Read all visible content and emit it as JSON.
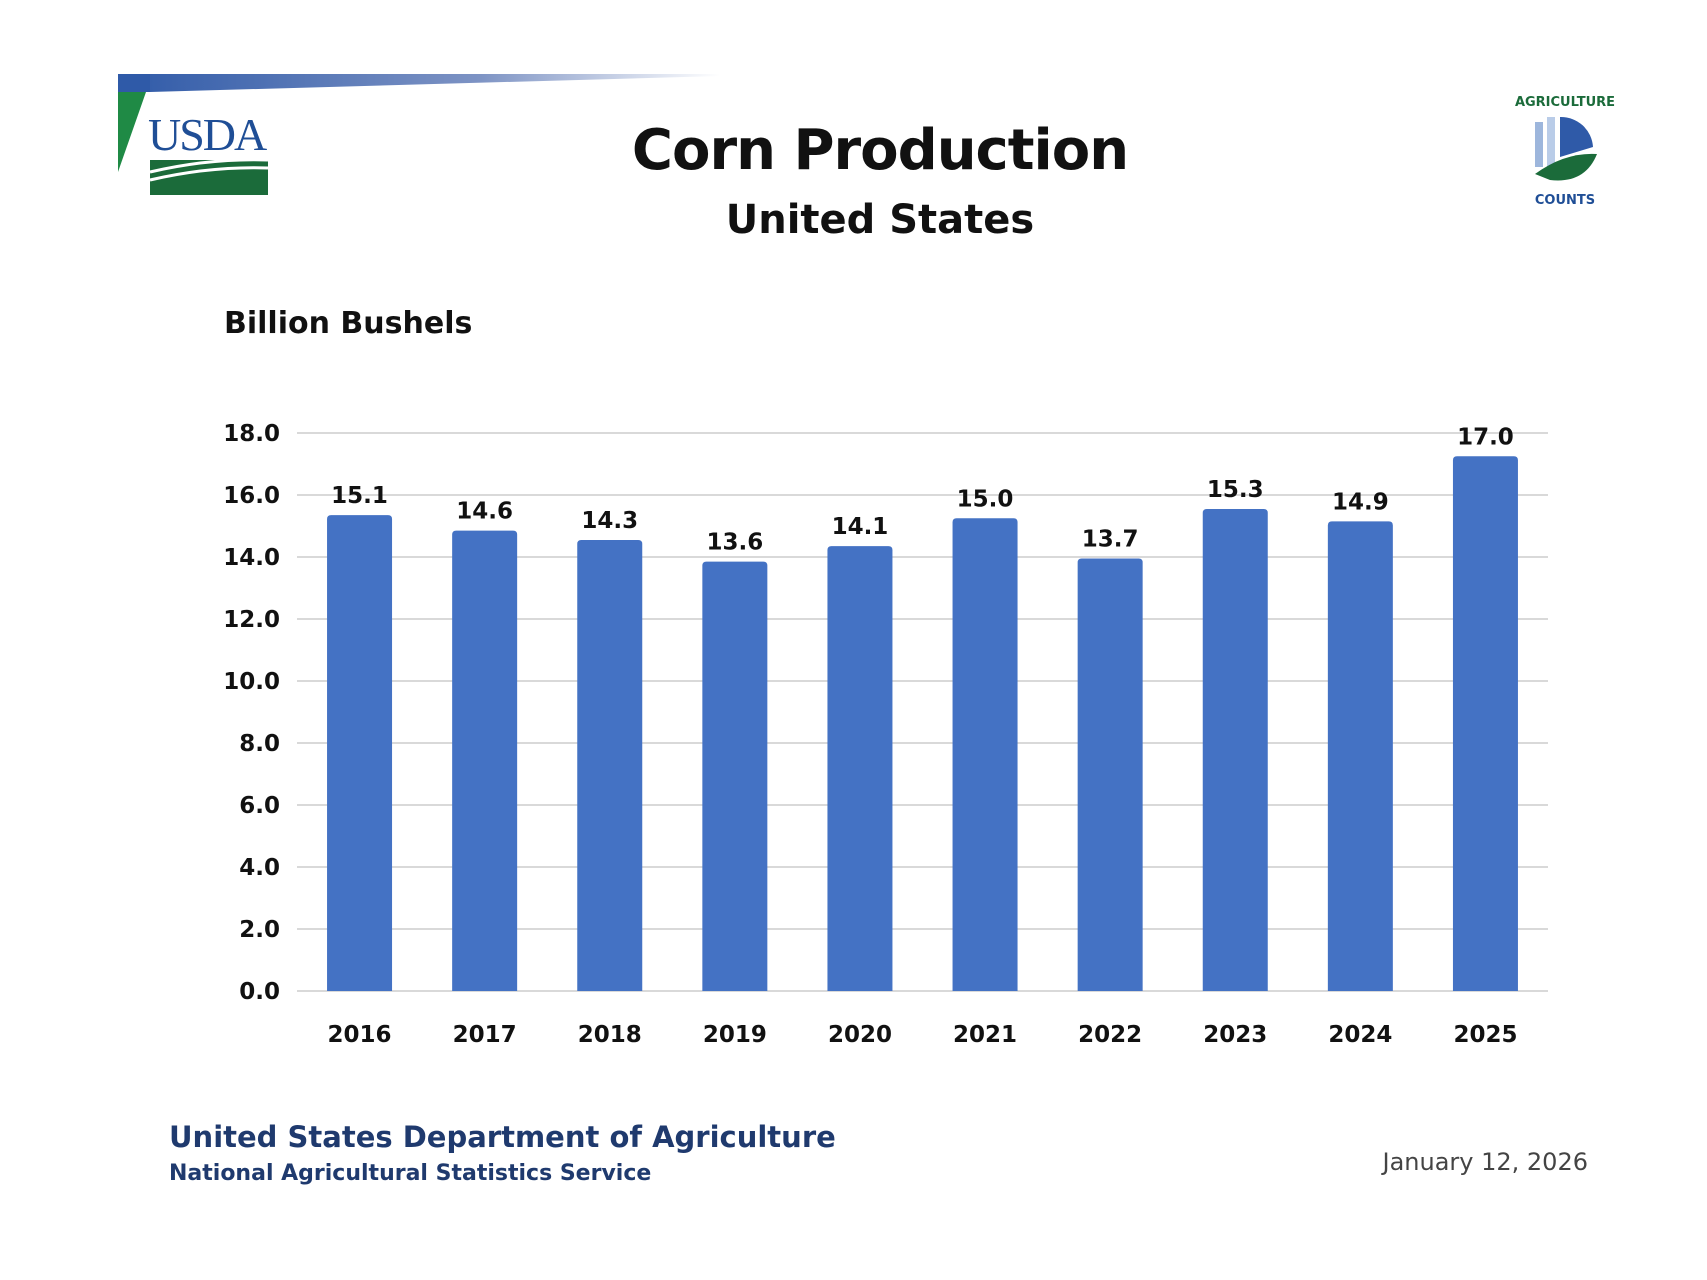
{
  "header": {
    "title": "Corn Production",
    "subtitle": "United States",
    "logo_left": "USDA",
    "logo_right": "AGRICULTURE COUNTS"
  },
  "footer": {
    "department": "United States Department of Agriculture",
    "service": "National Agricultural Statistics Service",
    "date": "January 12, 2026"
  },
  "colors": {
    "bar": "#4472c4",
    "grid": "#d9d9d9",
    "usda_blue": "#1f4e96",
    "usda_green": "#1b6b3a"
  },
  "chart_data": {
    "type": "bar",
    "title": "Corn Production",
    "subtitle": "United States",
    "ylabel": "Billion Bushels",
    "xlabel": "",
    "categories": [
      "2016",
      "2017",
      "2018",
      "2019",
      "2020",
      "2021",
      "2022",
      "2023",
      "2024",
      "2025"
    ],
    "values": [
      15.1,
      14.6,
      14.3,
      13.6,
      14.1,
      15.0,
      13.7,
      15.3,
      14.9,
      17.0
    ],
    "value_labels": [
      "15.1",
      "14.6",
      "14.3",
      "13.6",
      "14.1",
      "15.0",
      "13.7",
      "15.3",
      "14.9",
      "17.0"
    ],
    "ylim": [
      0,
      18
    ],
    "yticks": [
      "0.0",
      "2.0",
      "4.0",
      "6.0",
      "8.0",
      "10.0",
      "12.0",
      "14.0",
      "16.0",
      "18.0"
    ],
    "grid": true,
    "legend": "none"
  }
}
